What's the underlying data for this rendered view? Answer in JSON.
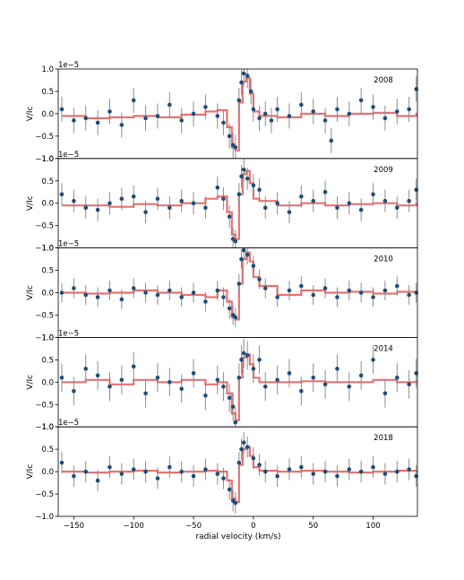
{
  "colors": {
    "points": "#1f4e79",
    "errorbars": "#8c8c8c",
    "model": "#e05a5a"
  },
  "figure": {
    "xlabel": "radial velocity (km/s)",
    "ylabel": "V/Ic",
    "xlim": [
      -163,
      137
    ],
    "xticks": [
      -150,
      -100,
      -50,
      0,
      50,
      100
    ],
    "xtick_labels": [
      "−150",
      "−100",
      "−50",
      "0",
      "50",
      "100"
    ],
    "ylim": [
      -1.0,
      1.0
    ],
    "yticks": [
      -1.0,
      -0.5,
      0.0,
      0.5,
      1.0
    ],
    "ytick_labels": [
      "−1.0",
      "−0.5",
      "0.0",
      "0.5",
      "1.0"
    ],
    "offset_label": "1e−5"
  },
  "chart_data": [
    {
      "type": "scatter",
      "year": "2008",
      "ylabel": "V/Ic",
      "offset": "1e−5",
      "xlim": [
        -163,
        137
      ],
      "ylim": [
        -1.0,
        1.0
      ],
      "series": [
        {
          "name": "",
          "kind": "points_with_errorbars",
          "x": [
            -160,
            -150,
            -140,
            -130,
            -120,
            -110,
            -100,
            -90,
            -80,
            -70,
            -60,
            -50,
            -40,
            -30,
            -25,
            -20,
            -17,
            -15,
            -12,
            -10,
            -8,
            -5,
            -2,
            0,
            5,
            10,
            15,
            20,
            30,
            40,
            50,
            60,
            65,
            70,
            80,
            90,
            100,
            110,
            120,
            130,
            136
          ],
          "y": [
            0.1,
            -0.15,
            -0.1,
            -0.2,
            0.05,
            -0.25,
            0.3,
            -0.1,
            -0.05,
            0.2,
            -0.15,
            0.0,
            0.15,
            -0.05,
            -0.2,
            -0.5,
            -0.7,
            -0.75,
            0.3,
            0.7,
            0.9,
            0.85,
            0.5,
            0.1,
            -0.1,
            0.0,
            -0.15,
            0.1,
            -0.05,
            0.2,
            0.05,
            -0.15,
            -0.6,
            0.1,
            0.0,
            0.3,
            0.15,
            -0.1,
            0.05,
            0.1,
            0.55
          ],
          "yerr": 0.28
        },
        {
          "name": "",
          "kind": "model_step",
          "x": [
            -160,
            -140,
            -120,
            -100,
            -80,
            -60,
            -40,
            -30,
            -22,
            -18,
            -15,
            -12,
            -9,
            -6,
            -3,
            0,
            5,
            20,
            40,
            60,
            80,
            100,
            120,
            136
          ],
          "y": [
            -0.05,
            -0.1,
            -0.08,
            -0.05,
            -0.08,
            -0.02,
            0.05,
            0.08,
            -0.3,
            -0.75,
            -0.82,
            0.25,
            0.72,
            0.8,
            0.45,
            0.05,
            -0.05,
            -0.08,
            0.0,
            -0.05,
            0.0,
            0.02,
            -0.05,
            0.0
          ]
        }
      ]
    },
    {
      "type": "scatter",
      "year": "2009",
      "ylabel": "V/Ic",
      "offset": "1e−5",
      "xlim": [
        -163,
        137
      ],
      "ylim": [
        -1.0,
        1.0
      ],
      "series": [
        {
          "name": "",
          "kind": "points_with_errorbars",
          "x": [
            -160,
            -150,
            -140,
            -130,
            -120,
            -110,
            -100,
            -90,
            -80,
            -70,
            -60,
            -50,
            -40,
            -30,
            -25,
            -20,
            -17,
            -15,
            -12,
            -10,
            -8,
            -5,
            0,
            5,
            10,
            20,
            30,
            40,
            50,
            60,
            70,
            80,
            90,
            100,
            110,
            120,
            130,
            136
          ],
          "y": [
            0.2,
            0.05,
            -0.1,
            -0.15,
            0.0,
            0.1,
            0.15,
            -0.2,
            0.1,
            -0.1,
            0.05,
            0.0,
            -0.1,
            0.35,
            0.1,
            -0.3,
            -0.8,
            -0.85,
            0.2,
            0.6,
            0.75,
            0.55,
            0.4,
            0.3,
            -0.1,
            0.0,
            -0.2,
            0.15,
            0.05,
            0.25,
            -0.1,
            0.0,
            -0.15,
            0.2,
            0.05,
            -0.1,
            0.05,
            0.3
          ],
          "yerr": 0.25
        },
        {
          "name": "",
          "kind": "model_step",
          "x": [
            -160,
            -140,
            -120,
            -100,
            -80,
            -60,
            -40,
            -30,
            -22,
            -18,
            -15,
            -12,
            -9,
            -6,
            -3,
            0,
            5,
            20,
            40,
            60,
            80,
            100,
            120,
            136
          ],
          "y": [
            -0.05,
            -0.05,
            -0.08,
            -0.02,
            -0.05,
            0.0,
            0.1,
            0.15,
            -0.2,
            -0.7,
            -0.8,
            0.2,
            0.65,
            0.72,
            0.45,
            0.1,
            0.05,
            -0.05,
            0.0,
            -0.05,
            -0.02,
            0.0,
            -0.05,
            0.0
          ]
        }
      ]
    },
    {
      "type": "scatter",
      "year": "2010",
      "ylabel": "V/Ic",
      "offset": "1e−5",
      "xlim": [
        -163,
        137
      ],
      "ylim": [
        -1.0,
        1.0
      ],
      "series": [
        {
          "name": "",
          "kind": "points_with_errorbars",
          "x": [
            -160,
            -150,
            -140,
            -130,
            -120,
            -110,
            -100,
            -90,
            -80,
            -70,
            -60,
            -50,
            -40,
            -30,
            -25,
            -20,
            -17,
            -15,
            -12,
            -10,
            -8,
            -5,
            0,
            5,
            10,
            20,
            30,
            40,
            50,
            60,
            70,
            80,
            90,
            100,
            110,
            120,
            130,
            136
          ],
          "y": [
            0.0,
            0.1,
            -0.05,
            -0.1,
            0.05,
            -0.15,
            0.1,
            0.0,
            -0.05,
            0.05,
            -0.1,
            0.0,
            -0.2,
            0.05,
            -0.1,
            -0.35,
            -0.5,
            -0.55,
            0.2,
            0.75,
            0.95,
            0.85,
            0.6,
            0.3,
            0.1,
            -0.1,
            0.05,
            0.15,
            -0.05,
            0.1,
            -0.1,
            0.05,
            0.0,
            -0.1,
            0.05,
            0.15,
            -0.05,
            0.0
          ],
          "yerr": 0.22
        },
        {
          "name": "",
          "kind": "model_step",
          "x": [
            -160,
            -140,
            -120,
            -100,
            -80,
            -60,
            -40,
            -30,
            -22,
            -18,
            -15,
            -12,
            -9,
            -6,
            -3,
            0,
            5,
            20,
            40,
            60,
            80,
            100,
            120,
            136
          ],
          "y": [
            0.0,
            -0.02,
            0.0,
            0.05,
            0.0,
            -0.05,
            -0.1,
            0.05,
            -0.2,
            -0.55,
            -0.6,
            0.2,
            0.75,
            0.9,
            0.7,
            0.35,
            0.15,
            -0.05,
            0.05,
            0.0,
            0.02,
            -0.02,
            0.02,
            0.0
          ]
        }
      ]
    },
    {
      "type": "scatter",
      "year": "2014",
      "ylabel": "V/Ic",
      "offset": "1e−5",
      "xlim": [
        -163,
        137
      ],
      "ylim": [
        -1.0,
        1.0
      ],
      "series": [
        {
          "name": "",
          "kind": "points_with_errorbars",
          "x": [
            -160,
            -150,
            -140,
            -130,
            -120,
            -110,
            -100,
            -90,
            -80,
            -70,
            -60,
            -50,
            -40,
            -30,
            -25,
            -20,
            -17,
            -15,
            -12,
            -10,
            -8,
            -5,
            0,
            5,
            10,
            20,
            30,
            40,
            50,
            60,
            70,
            80,
            90,
            100,
            110,
            120,
            130,
            136
          ],
          "y": [
            0.1,
            -0.2,
            0.3,
            0.15,
            -0.1,
            0.05,
            0.35,
            -0.25,
            0.1,
            0.0,
            -0.15,
            0.2,
            -0.3,
            0.05,
            -0.1,
            -0.35,
            -0.55,
            -0.9,
            0.1,
            0.5,
            0.65,
            0.6,
            0.3,
            0.5,
            -0.1,
            0.05,
            0.2,
            -0.2,
            0.1,
            -0.05,
            0.3,
            -0.1,
            0.15,
            0.5,
            -0.25,
            0.1,
            -0.05,
            0.2
          ],
          "yerr": 0.32
        },
        {
          "name": "",
          "kind": "model_step",
          "x": [
            -160,
            -140,
            -120,
            -100,
            -80,
            -60,
            -40,
            -30,
            -22,
            -18,
            -15,
            -12,
            -9,
            -6,
            -3,
            0,
            5,
            20,
            40,
            60,
            80,
            100,
            120,
            136
          ],
          "y": [
            0.0,
            0.05,
            -0.05,
            0.05,
            0.0,
            0.05,
            -0.05,
            0.0,
            -0.25,
            -0.7,
            -0.85,
            0.1,
            0.55,
            0.62,
            0.4,
            0.1,
            0.0,
            0.0,
            0.02,
            0.0,
            0.0,
            0.05,
            0.0,
            0.02
          ]
        }
      ]
    },
    {
      "type": "scatter",
      "year": "2018",
      "ylabel": "V/Ic",
      "offset": "1e−5",
      "xlim": [
        -163,
        137
      ],
      "ylim": [
        -1.0,
        1.0
      ],
      "series": [
        {
          "name": "",
          "kind": "points_with_errorbars",
          "x": [
            -160,
            -150,
            -140,
            -130,
            -120,
            -110,
            -100,
            -90,
            -80,
            -70,
            -60,
            -50,
            -40,
            -30,
            -25,
            -20,
            -17,
            -15,
            -12,
            -10,
            -8,
            -5,
            0,
            5,
            10,
            20,
            30,
            40,
            50,
            60,
            70,
            80,
            90,
            100,
            110,
            120,
            130,
            136
          ],
          "y": [
            0.2,
            -0.1,
            0.0,
            -0.2,
            0.1,
            -0.05,
            0.05,
            0.0,
            -0.15,
            0.1,
            0.0,
            -0.1,
            0.05,
            -0.05,
            -0.15,
            -0.4,
            -0.65,
            -0.7,
            0.2,
            0.5,
            0.65,
            0.55,
            0.3,
            0.15,
            0.0,
            -0.1,
            0.05,
            0.1,
            -0.05,
            0.0,
            -0.1,
            0.05,
            0.0,
            0.1,
            -0.05,
            0.0,
            0.05,
            -0.1
          ],
          "yerr": 0.24
        },
        {
          "name": "",
          "kind": "model_step",
          "x": [
            -160,
            -140,
            -120,
            -100,
            -80,
            -60,
            -40,
            -30,
            -22,
            -18,
            -15,
            -12,
            -9,
            -6,
            -3,
            0,
            5,
            20,
            40,
            60,
            80,
            100,
            120,
            136
          ],
          "y": [
            0.0,
            -0.02,
            0.0,
            0.02,
            -0.02,
            0.0,
            0.02,
            0.0,
            -0.2,
            -0.6,
            -0.68,
            0.15,
            0.5,
            0.55,
            0.35,
            0.1,
            0.02,
            0.0,
            0.02,
            0.0,
            -0.02,
            0.0,
            0.02,
            0.0
          ]
        }
      ]
    }
  ]
}
